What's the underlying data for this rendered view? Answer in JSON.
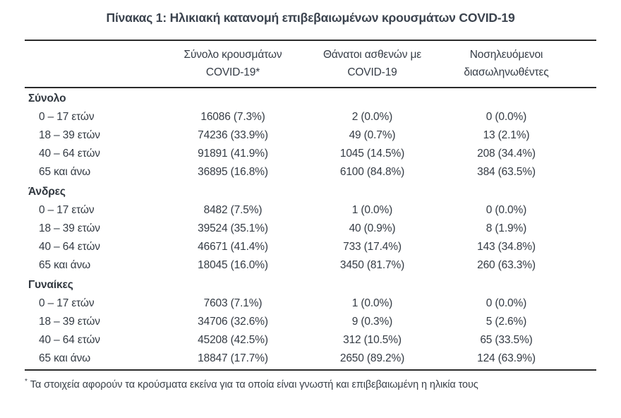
{
  "title": "Πίνακας 1: Ηλικιακή κατανομή επιβεβαιωμένων κρουσμάτων COVID-19",
  "columns": [
    {
      "line1": "Σύνολο κρουσμάτων",
      "line2": "COVID-19*"
    },
    {
      "line1": "Θάνατοι ασθενών με",
      "line2": "COVID-19"
    },
    {
      "line1": "Νοσηλευόμενοι",
      "line2": "διασωληνωθέντες"
    }
  ],
  "sections": [
    {
      "label": "Σύνολο",
      "rows": [
        {
          "age": "0 – 17 ετών",
          "cases": "16086 (7.3%)",
          "deaths": "2 (0.0%)",
          "intubated": "0 (0.0%)"
        },
        {
          "age": "18 – 39 ετών",
          "cases": "74236 (33.9%)",
          "deaths": "49 (0.7%)",
          "intubated": "13 (2.1%)"
        },
        {
          "age": "40 – 64 ετών",
          "cases": "91891 (41.9%)",
          "deaths": "1045 (14.5%)",
          "intubated": "208 (34.4%)"
        },
        {
          "age": "65 και άνω",
          "cases": "36895 (16.8%)",
          "deaths": "6100 (84.8%)",
          "intubated": "384 (63.5%)"
        }
      ]
    },
    {
      "label": "Άνδρες",
      "rows": [
        {
          "age": "0 – 17 ετών",
          "cases": "8482 (7.5%)",
          "deaths": "1 (0.0%)",
          "intubated": "0 (0.0%)"
        },
        {
          "age": "18 – 39 ετών",
          "cases": "39524 (35.1%)",
          "deaths": "40 (0.9%)",
          "intubated": "8 (1.9%)"
        },
        {
          "age": "40 – 64 ετών",
          "cases": "46671 (41.4%)",
          "deaths": "733 (17.4%)",
          "intubated": "143 (34.8%)"
        },
        {
          "age": "65 και άνω",
          "cases": "18045 (16.0%)",
          "deaths": "3450 (81.7%)",
          "intubated": "260 (63.3%)"
        }
      ]
    },
    {
      "label": "Γυναίκες",
      "rows": [
        {
          "age": "0 – 17 ετών",
          "cases": "7603 (7.1%)",
          "deaths": "1 (0.0%)",
          "intubated": "0 (0.0%)"
        },
        {
          "age": "18 – 39 ετών",
          "cases": "34706 (32.6%)",
          "deaths": "9 (0.3%)",
          "intubated": "5 (2.6%)"
        },
        {
          "age": "40 – 64 ετών",
          "cases": "45208 (42.5%)",
          "deaths": "312 (10.5%)",
          "intubated": "65 (33.5%)"
        },
        {
          "age": "65 και άνω",
          "cases": "18847 (17.7%)",
          "deaths": "2650 (89.2%)",
          "intubated": "124 (63.9%)"
        }
      ]
    }
  ],
  "footnote": {
    "marker": "*",
    "text": "Τα στοιχεία αφορούν τα κρούσματα εκείνα για τα οποία είναι γνωστή και επιβεβαιωμένη η ηλικία τους"
  }
}
